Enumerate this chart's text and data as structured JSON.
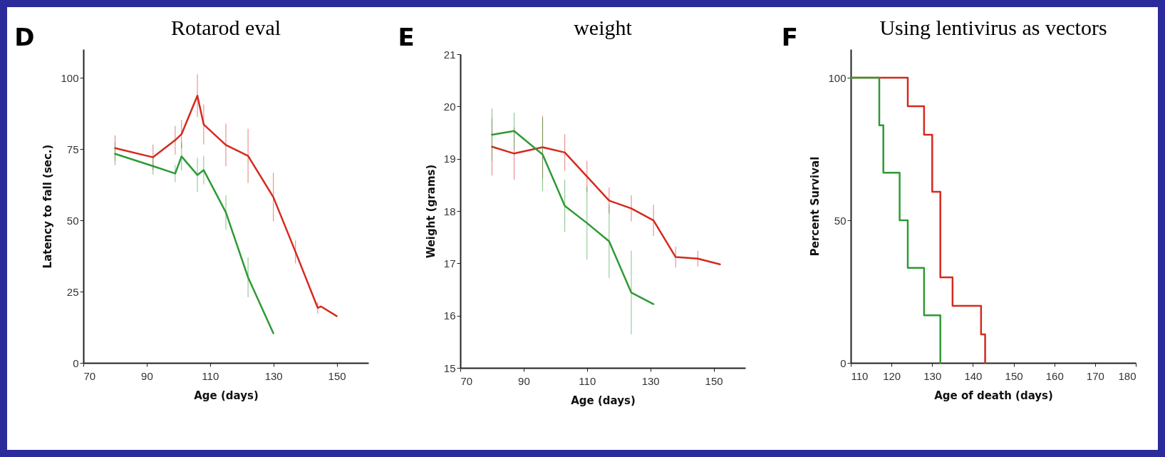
{
  "chart_data": [
    {
      "type": "line",
      "title": "Rotarod eval",
      "annotations": [
        "D"
      ],
      "xlabel": "Age (days)",
      "ylabel": "Latency to fall (sec.)",
      "xlim": [
        70,
        160
      ],
      "ylim": [
        0,
        110
      ],
      "xticks": [
        70,
        90,
        110,
        130,
        150
      ],
      "yticks": [
        0,
        25,
        50,
        75,
        100
      ],
      "grid": false,
      "line_style": "solid",
      "series": [
        {
          "color": "#d42a1e",
          "x": [
            80,
            92,
            99,
            101,
            106,
            108,
            115,
            122,
            130,
            137,
            144,
            145,
            150
          ],
          "values": [
            75.3,
            72.1,
            78.1,
            80.2,
            93.7,
            83.6,
            76.4,
            72.6,
            58.1,
            38.9,
            19.3,
            19.8,
            16.4
          ],
          "errors": [
            4.5,
            4.5,
            5,
            5,
            7.5,
            7,
            7.5,
            9.5,
            8.5,
            4,
            2,
            null,
            null
          ]
        },
        {
          "color": "#2e9a35",
          "x": [
            80,
            92,
            99,
            101,
            106,
            108,
            115,
            122,
            130
          ],
          "values": [
            73.3,
            69,
            66.4,
            72.4,
            65.9,
            67.6,
            52.8,
            30,
            10.4
          ],
          "errors": [
            4,
            3,
            3,
            5,
            6,
            5,
            6,
            7,
            null
          ]
        }
      ]
    },
    {
      "type": "line",
      "title": "weight",
      "annotations": [
        "E"
      ],
      "xlabel": "Age (days)",
      "ylabel": "Weight (grams)",
      "xlim": [
        70,
        160
      ],
      "ylim": [
        15,
        21
      ],
      "xticks": [
        70,
        90,
        110,
        130,
        150
      ],
      "yticks": [
        15,
        16,
        17,
        18,
        19,
        20,
        21
      ],
      "grid": false,
      "line_style": "solid",
      "series": [
        {
          "color": "#d42a1e",
          "x": [
            80,
            87,
            96,
            103,
            110,
            117,
            124,
            131,
            138,
            145,
            152
          ],
          "values": [
            19.23,
            19.1,
            19.22,
            19.12,
            18.66,
            18.2,
            18.05,
            17.82,
            17.12,
            17.09,
            16.98
          ],
          "errors": [
            0.55,
            0.5,
            0.6,
            0.35,
            0.3,
            0.25,
            0.25,
            0.3,
            0.2,
            0.15,
            null
          ]
        },
        {
          "color": "#2e9a35",
          "x": [
            80,
            87,
            96,
            103,
            110,
            117,
            124,
            131
          ],
          "values": [
            19.46,
            19.53,
            19.08,
            18.1,
            17.77,
            17.42,
            16.44,
            16.22
          ],
          "errors": [
            0.5,
            0.35,
            0.7,
            0.5,
            0.7,
            0.7,
            0.8,
            null
          ]
        }
      ]
    },
    {
      "type": "step",
      "title": "Using lentivirus as vectors",
      "annotations": [
        "F"
      ],
      "xlabel": "Age of death (days)",
      "ylabel": "Percent Survival",
      "xlim": [
        110,
        180
      ],
      "ylim": [
        0,
        110
      ],
      "xticks": [
        110,
        120,
        130,
        140,
        150,
        160,
        170,
        180
      ],
      "yticks": [
        0,
        50,
        100
      ],
      "grid": false,
      "line_style": "solid",
      "series": [
        {
          "color": "#d42a1e",
          "x": [
            110,
            124,
            128,
            130,
            132,
            135,
            142,
            143
          ],
          "values": [
            100,
            90,
            80,
            60,
            30,
            20,
            10,
            0
          ]
        },
        {
          "color": "#2e9a35",
          "x": [
            110,
            117,
            118,
            122,
            124,
            128,
            132
          ],
          "values": [
            100,
            83.3,
            66.7,
            50,
            33.3,
            16.7,
            0
          ]
        }
      ]
    }
  ]
}
